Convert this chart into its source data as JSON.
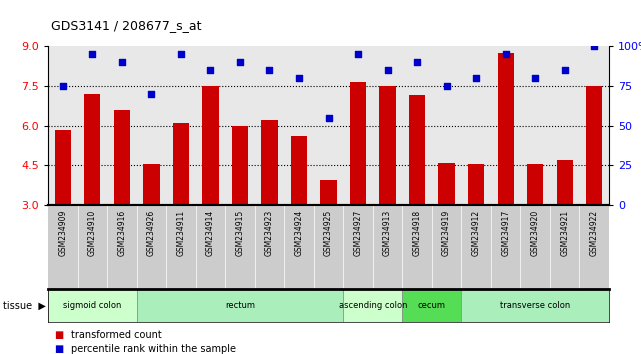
{
  "title": "GDS3141 / 208677_s_at",
  "samples": [
    "GSM234909",
    "GSM234910",
    "GSM234916",
    "GSM234926",
    "GSM234911",
    "GSM234914",
    "GSM234915",
    "GSM234923",
    "GSM234924",
    "GSM234925",
    "GSM234927",
    "GSM234913",
    "GSM234918",
    "GSM234919",
    "GSM234912",
    "GSM234917",
    "GSM234920",
    "GSM234921",
    "GSM234922"
  ],
  "bar_values": [
    5.85,
    7.2,
    6.6,
    4.55,
    6.1,
    7.5,
    6.0,
    6.2,
    5.6,
    3.95,
    7.65,
    7.5,
    7.15,
    4.6,
    4.55,
    8.75,
    4.55,
    4.7,
    7.5
  ],
  "dot_values": [
    75,
    95,
    90,
    70,
    95,
    85,
    90,
    85,
    80,
    55,
    95,
    85,
    90,
    75,
    80,
    95,
    80,
    85,
    100
  ],
  "ylim_left": [
    3,
    9
  ],
  "ylim_right": [
    0,
    100
  ],
  "yticks_left": [
    3,
    4.5,
    6,
    7.5,
    9
  ],
  "yticks_right": [
    0,
    25,
    50,
    75,
    100
  ],
  "bar_color": "#cc0000",
  "dot_color": "#0000cc",
  "tissue_groups": [
    {
      "label": "sigmoid colon",
      "start": 0,
      "end": 3
    },
    {
      "label": "rectum",
      "start": 3,
      "end": 10
    },
    {
      "label": "ascending colon",
      "start": 10,
      "end": 12
    },
    {
      "label": "cecum",
      "start": 12,
      "end": 14
    },
    {
      "label": "transverse colon",
      "start": 14,
      "end": 19
    }
  ],
  "tissue_colors": {
    "sigmoid colon": "#ccffcc",
    "rectum": "#aaeebb",
    "ascending colon": "#ccffcc",
    "cecum": "#55dd55",
    "transverse colon": "#aaeebb"
  },
  "tissue_label": "tissue",
  "legend_bar": "transformed count",
  "legend_dot": "percentile rank within the sample",
  "plot_bg": "#e8e8e8",
  "xlabel_bg": "#cccccc"
}
